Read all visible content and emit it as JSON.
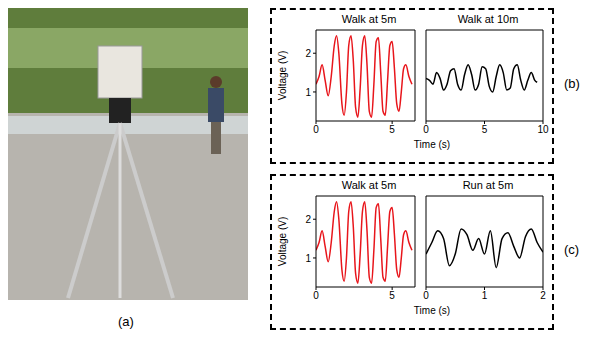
{
  "panel_labels": [
    "(a)",
    "(b)",
    "(c)"
  ],
  "chart_data": [
    {
      "type": "line",
      "title": "Walk at 5m",
      "xlabel": "Time (s)",
      "ylabel": "Voltage (V)",
      "color": "#e8151b",
      "xlim": [
        0,
        6.5
      ],
      "xticks": [
        0,
        5
      ],
      "ylim": [
        0.25,
        2.6
      ],
      "yticks": [
        1,
        2
      ],
      "x": [
        0,
        0.2,
        0.4,
        0.6,
        0.8,
        1.0,
        1.2,
        1.35,
        1.5,
        1.7,
        1.85,
        2.0,
        2.15,
        2.3,
        2.45,
        2.6,
        2.75,
        2.9,
        3.05,
        3.2,
        3.35,
        3.5,
        3.65,
        3.8,
        3.95,
        4.1,
        4.25,
        4.4,
        4.55,
        4.7,
        4.85,
        5.0,
        5.15,
        5.3,
        5.45,
        5.6,
        5.75,
        5.9,
        6.1,
        6.3
      ],
      "values": [
        1.2,
        1.4,
        1.7,
        1.3,
        0.9,
        1.4,
        2.2,
        2.45,
        2.0,
        0.7,
        0.4,
        1.0,
        2.2,
        2.45,
        1.8,
        0.6,
        0.35,
        1.1,
        2.2,
        2.45,
        1.7,
        0.5,
        0.35,
        1.2,
        2.3,
        2.4,
        1.5,
        0.5,
        0.4,
        1.3,
        2.2,
        2.3,
        1.6,
        0.7,
        0.5,
        1.0,
        1.6,
        1.7,
        1.4,
        1.2
      ]
    },
    {
      "type": "line",
      "title": "Walk at 10m",
      "color": "#000000",
      "xlim": [
        0,
        10
      ],
      "xticks": [
        0,
        5,
        10
      ],
      "ylim": [
        0.25,
        2.6
      ],
      "yticks": [
        1,
        2
      ],
      "tick_labels": "x",
      "x": [
        0,
        0.3,
        0.6,
        0.9,
        1.2,
        1.5,
        1.8,
        2.1,
        2.4,
        2.7,
        3.0,
        3.3,
        3.6,
        3.9,
        4.2,
        4.5,
        4.8,
        5.1,
        5.4,
        5.7,
        6.0,
        6.3,
        6.6,
        6.9,
        7.2,
        7.5,
        7.8,
        8.1,
        8.4,
        8.7,
        9.0,
        9.3,
        9.5
      ],
      "values": [
        1.35,
        1.3,
        1.2,
        1.5,
        1.35,
        1.05,
        1.2,
        1.55,
        1.6,
        1.2,
        1.05,
        1.45,
        1.7,
        1.45,
        1.05,
        1.2,
        1.65,
        1.6,
        1.15,
        1.0,
        1.4,
        1.7,
        1.5,
        1.05,
        1.1,
        1.6,
        1.7,
        1.3,
        1.05,
        1.3,
        1.5,
        1.3,
        1.25
      ]
    },
    {
      "type": "line",
      "title": "Walk at 5m",
      "xlabel": "Time (s)",
      "ylabel": "Voltage (V)",
      "color": "#e8151b",
      "xlim": [
        0,
        6.5
      ],
      "xticks": [
        0,
        5
      ],
      "ylim": [
        0.25,
        2.6
      ],
      "yticks": [
        1,
        2
      ],
      "x": [
        0,
        0.2,
        0.4,
        0.6,
        0.8,
        1.0,
        1.2,
        1.35,
        1.5,
        1.7,
        1.85,
        2.0,
        2.15,
        2.3,
        2.45,
        2.6,
        2.75,
        2.9,
        3.05,
        3.2,
        3.35,
        3.5,
        3.65,
        3.8,
        3.95,
        4.1,
        4.25,
        4.4,
        4.55,
        4.7,
        4.85,
        5.0,
        5.15,
        5.3,
        5.45,
        5.6,
        5.75,
        5.9,
        6.1,
        6.3
      ],
      "values": [
        1.2,
        1.4,
        1.7,
        1.3,
        0.9,
        1.4,
        2.2,
        2.45,
        2.0,
        0.7,
        0.4,
        1.0,
        2.2,
        2.45,
        1.8,
        0.6,
        0.35,
        1.1,
        2.2,
        2.45,
        1.7,
        0.5,
        0.35,
        1.2,
        2.3,
        2.4,
        1.5,
        0.5,
        0.4,
        1.3,
        2.2,
        2.3,
        1.6,
        0.7,
        0.5,
        1.0,
        1.6,
        1.7,
        1.4,
        1.2
      ]
    },
    {
      "type": "line",
      "title": "Run at 5m",
      "color": "#000000",
      "xlim": [
        0,
        2
      ],
      "xticks": [
        0,
        1,
        2
      ],
      "ylim": [
        0.25,
        2.6
      ],
      "yticks": [
        1,
        2
      ],
      "tick_labels": "x",
      "x": [
        0,
        0.1,
        0.2,
        0.3,
        0.4,
        0.5,
        0.6,
        0.7,
        0.8,
        0.9,
        1.0,
        1.1,
        1.2,
        1.3,
        1.4,
        1.5,
        1.6,
        1.7,
        1.8,
        1.9,
        2.0
      ],
      "values": [
        1.1,
        1.4,
        1.7,
        1.5,
        0.8,
        1.1,
        1.75,
        1.6,
        1.2,
        1.5,
        1.1,
        1.7,
        0.75,
        1.5,
        1.65,
        1.3,
        1.0,
        1.55,
        1.75,
        1.4,
        1.15
      ]
    }
  ]
}
